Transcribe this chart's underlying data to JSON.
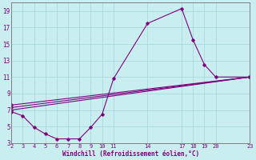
{
  "xlabel": "Windchill (Refroidissement éolien,°C)",
  "bg_color": "#c8eef0",
  "grid_color": "#a8d8dc",
  "line_color": "#800080",
  "xlim": [
    2,
    23
  ],
  "ylim": [
    3,
    20
  ],
  "xticks": [
    2,
    3,
    4,
    5,
    6,
    7,
    8,
    9,
    10,
    11,
    14,
    17,
    18,
    19,
    20,
    23
  ],
  "yticks": [
    3,
    5,
    7,
    9,
    11,
    13,
    15,
    17,
    19
  ],
  "series1_x": [
    2,
    3,
    4,
    5,
    6,
    7,
    8,
    9,
    10,
    11,
    14,
    17,
    18,
    19,
    20,
    23
  ],
  "series1_y": [
    6.8,
    6.3,
    4.9,
    4.1,
    3.5,
    3.5,
    3.5,
    4.9,
    6.5,
    10.8,
    17.5,
    19.3,
    15.5,
    12.5,
    11.0,
    11.0
  ],
  "series2_x": [
    2,
    23
  ],
  "series2_y": [
    7.0,
    11.0
  ],
  "series3_x": [
    2,
    23
  ],
  "series3_y": [
    7.3,
    11.0
  ],
  "series4_x": [
    2,
    23
  ],
  "series4_y": [
    7.6,
    11.0
  ]
}
